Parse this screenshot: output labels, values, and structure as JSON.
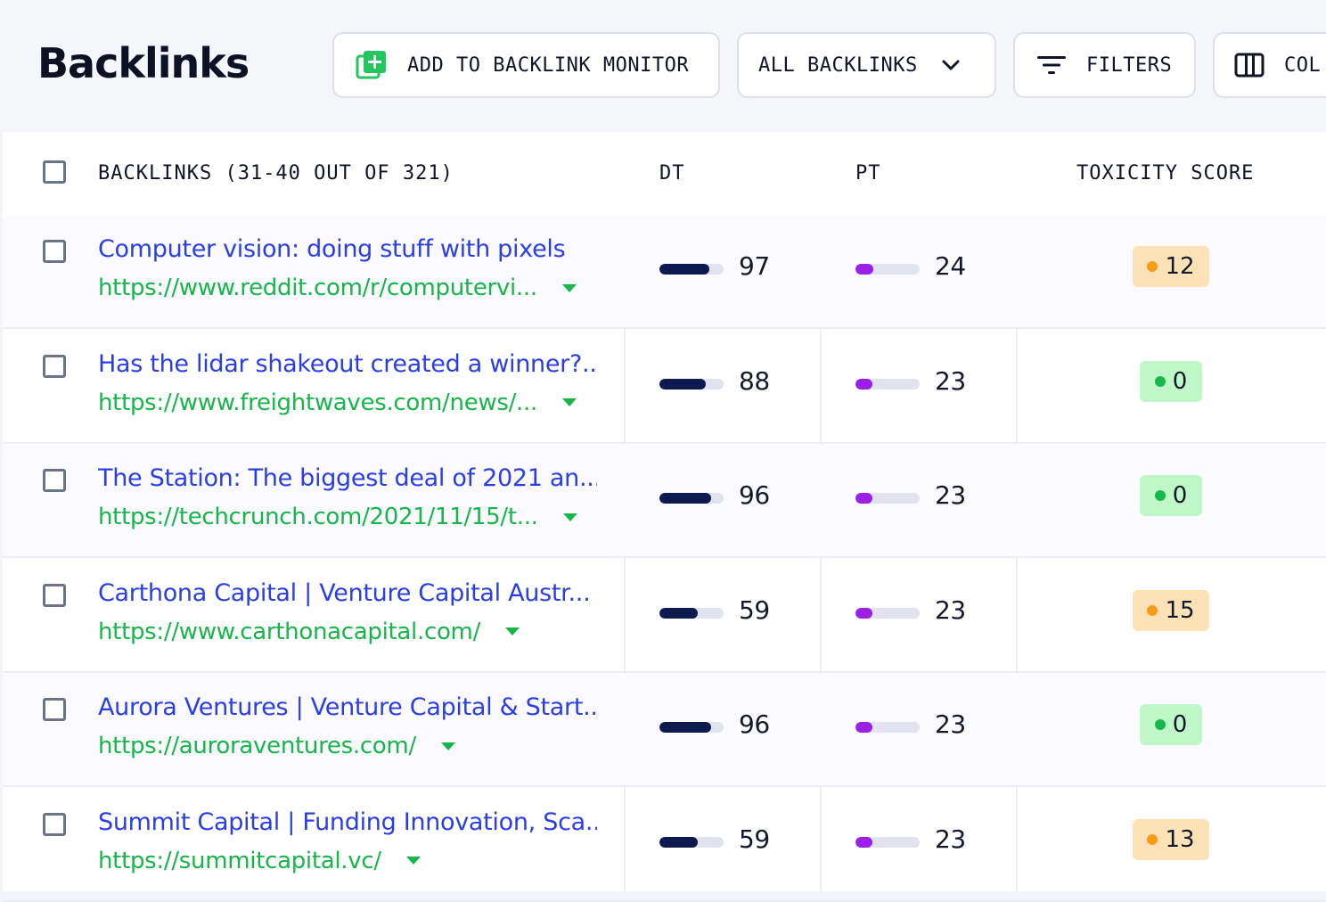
{
  "header": {
    "title": "Backlinks",
    "add_button": "ADD TO BACKLINK MONITOR",
    "all_backlinks": "ALL BACKLINKS",
    "filters": "FILTERS",
    "columns": "COL"
  },
  "table": {
    "columns": {
      "backlinks": "BACKLINKS (31-40 OUT OF 321)",
      "dt": "DT",
      "pt": "PT",
      "toxicity": "TOXICITY SCORE"
    },
    "rows": [
      {
        "title": "Computer vision: doing stuff with pixels",
        "url": "https://www.reddit.com/r/computervi...",
        "dt": "97",
        "dt_fraction": 0.78,
        "pt": "24",
        "pt_fraction": 0.28,
        "toxicity": "12",
        "toxicity_level": "medium"
      },
      {
        "title": "Has the lidar shakeout created a winner?...",
        "url": "https://www.freightwaves.com/news/...",
        "dt": "88",
        "dt_fraction": 0.72,
        "pt": "23",
        "pt_fraction": 0.26,
        "toxicity": "0",
        "toxicity_level": "low"
      },
      {
        "title": "The Station: The biggest deal of 2021 an...",
        "url": "https://techcrunch.com/2021/11/15/t...",
        "dt": "96",
        "dt_fraction": 0.8,
        "pt": "23",
        "pt_fraction": 0.26,
        "toxicity": "0",
        "toxicity_level": "low"
      },
      {
        "title": "Carthona Capital | Venture Capital Austr...",
        "url": "https://www.carthonacapital.com/",
        "dt": "59",
        "dt_fraction": 0.6,
        "pt": "23",
        "pt_fraction": 0.26,
        "toxicity": "15",
        "toxicity_level": "medium"
      },
      {
        "title": "Aurora Ventures | Venture Capital & Start...",
        "url": "https://auroraventures.com/",
        "dt": "96",
        "dt_fraction": 0.8,
        "pt": "23",
        "pt_fraction": 0.26,
        "toxicity": "0",
        "toxicity_level": "low"
      },
      {
        "title": "Summit Capital | Funding Innovation, Sca...",
        "url": "https://summitcapital.vc/",
        "dt": "59",
        "dt_fraction": 0.6,
        "pt": "23",
        "pt_fraction": 0.26,
        "toxicity": "13",
        "toxicity_level": "medium"
      }
    ]
  },
  "colors": {
    "title_link": "#2b3ee6",
    "url_link": "#17b54a",
    "dt_bar": "#0e1a4f",
    "pt_bar": "#9c1fe6",
    "toxicity_medium": "#fde2b7",
    "toxicity_low": "#bff7c8"
  },
  "icons": {
    "add": "plus-square-icon",
    "dropdown": "chevron-down-icon",
    "filters": "filter-lines-icon",
    "columns": "columns-icon",
    "row_expand": "caret-down-icon"
  }
}
